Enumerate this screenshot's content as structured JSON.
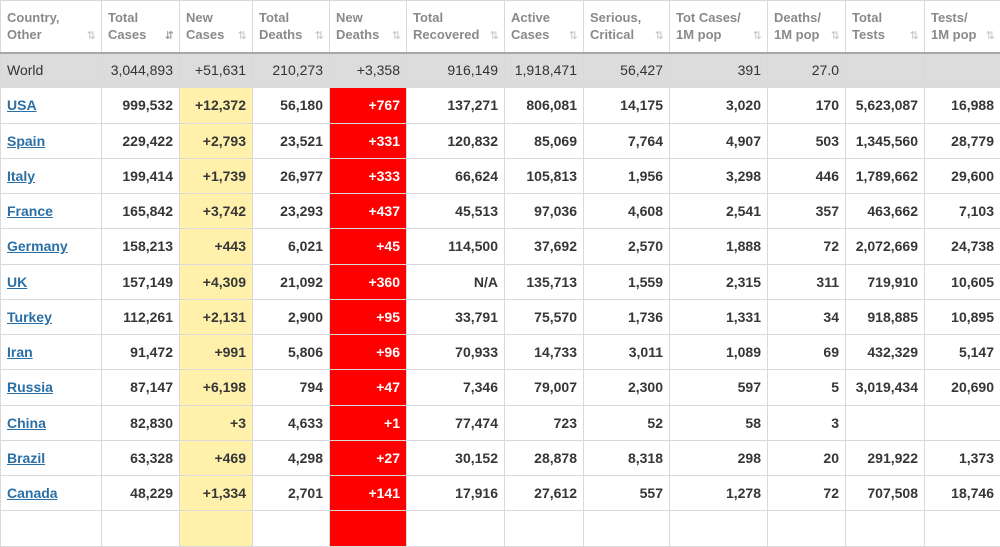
{
  "columns": [
    {
      "label": "Country,\nOther",
      "sort": "⇅"
    },
    {
      "label": "Total\nCases",
      "sort": "⇵"
    },
    {
      "label": "New\nCases",
      "sort": "⇅"
    },
    {
      "label": "Total\nDeaths",
      "sort": "⇅"
    },
    {
      "label": "New\nDeaths",
      "sort": "⇅"
    },
    {
      "label": "Total\nRecovered",
      "sort": "⇅"
    },
    {
      "label": "Active\nCases",
      "sort": "⇅"
    },
    {
      "label": "Serious,\nCritical",
      "sort": "⇅"
    },
    {
      "label": "Tot Cases/\n1M pop",
      "sort": "⇅"
    },
    {
      "label": "Deaths/\n1M pop",
      "sort": "⇅"
    },
    {
      "label": "Total\nTests",
      "sort": "⇅"
    },
    {
      "label": "Tests/\n1M pop",
      "sort": "⇅"
    }
  ],
  "world": [
    "World",
    "3,044,893",
    "+51,631",
    "210,273",
    "+3,358",
    "916,149",
    "1,918,471",
    "56,427",
    "391",
    "27.0",
    "",
    ""
  ],
  "rows": [
    [
      "USA",
      "999,532",
      "+12,372",
      "56,180",
      "+767",
      "137,271",
      "806,081",
      "14,175",
      "3,020",
      "170",
      "5,623,087",
      "16,988"
    ],
    [
      "Spain",
      "229,422",
      "+2,793",
      "23,521",
      "+331",
      "120,832",
      "85,069",
      "7,764",
      "4,907",
      "503",
      "1,345,560",
      "28,779"
    ],
    [
      "Italy",
      "199,414",
      "+1,739",
      "26,977",
      "+333",
      "66,624",
      "105,813",
      "1,956",
      "3,298",
      "446",
      "1,789,662",
      "29,600"
    ],
    [
      "France",
      "165,842",
      "+3,742",
      "23,293",
      "+437",
      "45,513",
      "97,036",
      "4,608",
      "2,541",
      "357",
      "463,662",
      "7,103"
    ],
    [
      "Germany",
      "158,213",
      "+443",
      "6,021",
      "+45",
      "114,500",
      "37,692",
      "2,570",
      "1,888",
      "72",
      "2,072,669",
      "24,738"
    ],
    [
      "UK",
      "157,149",
      "+4,309",
      "21,092",
      "+360",
      "N/A",
      "135,713",
      "1,559",
      "2,315",
      "311",
      "719,910",
      "10,605"
    ],
    [
      "Turkey",
      "112,261",
      "+2,131",
      "2,900",
      "+95",
      "33,791",
      "75,570",
      "1,736",
      "1,331",
      "34",
      "918,885",
      "10,895"
    ],
    [
      "Iran",
      "91,472",
      "+991",
      "5,806",
      "+96",
      "70,933",
      "14,733",
      "3,011",
      "1,089",
      "69",
      "432,329",
      "5,147"
    ],
    [
      "Russia",
      "87,147",
      "+6,198",
      "794",
      "+47",
      "7,346",
      "79,007",
      "2,300",
      "597",
      "5",
      "3,019,434",
      "20,690"
    ],
    [
      "China",
      "82,830",
      "+3",
      "4,633",
      "+1",
      "77,474",
      "723",
      "52",
      "58",
      "3",
      "",
      ""
    ],
    [
      "Brazil",
      "63,328",
      "+469",
      "4,298",
      "+27",
      "30,152",
      "28,878",
      "8,318",
      "298",
      "20",
      "291,922",
      "1,373"
    ],
    [
      "Canada",
      "48,229",
      "+1,334",
      "2,701",
      "+141",
      "17,916",
      "27,612",
      "557",
      "1,278",
      "72",
      "707,508",
      "18,746"
    ],
    [
      "",
      "",
      "",
      "",
      "",
      "",
      "",
      "",
      "",
      "",
      "",
      ""
    ]
  ],
  "colors": {
    "new_cases_bg": "#fff0ab",
    "new_deaths_bg": "#ff0000",
    "world_row_bg": "#dcdcdc",
    "link": "#2a6fa5"
  },
  "icons": {
    "sort": "sort-arrows-icon",
    "sort_active": "sort-descending-icon"
  }
}
